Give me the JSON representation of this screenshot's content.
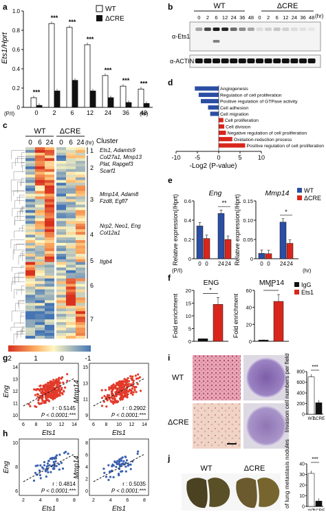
{
  "letters": {
    "a": "a",
    "b": "b",
    "c": "c",
    "d": "d",
    "e": "e",
    "f": "f",
    "g": "g",
    "h": "h",
    "i": "i",
    "j": "j"
  },
  "colors": {
    "wt_blue": "#2b4ea3",
    "cre_red": "#d9261c",
    "bar_white": "#ffffff",
    "bar_black": "#111111",
    "scatter_red": "#e23a2a",
    "scatter_blue": "#3a5fb0",
    "igg_black": "#111111",
    "ets1_red": "#d9261c"
  },
  "panel_a": {
    "ylabel": "Ets1/Hprt",
    "xlabel_prefix": "(P/I)",
    "xunit": "(hr)",
    "legend": [
      "WT",
      "ΔCRE"
    ],
    "sig": "***",
    "chart_data": {
      "type": "bar",
      "categories": [
        "0",
        "2",
        "6",
        "12",
        "24",
        "36",
        "48"
      ],
      "ylim": [
        0,
        1.0
      ],
      "yticks": [
        "0",
        "0.2",
        "0.4",
        "0.6",
        "0.8",
        "1.0"
      ],
      "series": [
        {
          "name": "WT",
          "values": [
            0.1,
            0.87,
            0.83,
            0.65,
            0.33,
            0.22,
            0.19
          ]
        },
        {
          "name": "ΔCRE",
          "values": [
            0.02,
            0.17,
            0.28,
            0.17,
            0.1,
            0.05,
            0.04
          ]
        }
      ]
    }
  },
  "panel_b": {
    "groups": [
      "WT",
      "ΔCRE"
    ],
    "lanes": [
      "0",
      "2",
      "6",
      "12",
      "24",
      "36",
      "48",
      "0",
      "2",
      "6",
      "12",
      "24",
      "36",
      "48"
    ],
    "unit": "(hr)",
    "rows": [
      "α-Ets1",
      "α-ACTIN"
    ]
  },
  "panel_c": {
    "groups": [
      "WT",
      "ΔCRE"
    ],
    "lanes": [
      "0",
      "6",
      "24",
      "0",
      "6",
      "24"
    ],
    "unit": "(hr)",
    "cluster_title": "Cluster",
    "clusters": [
      "1",
      "2",
      "3",
      "4",
      "5",
      "6",
      "7"
    ],
    "genes": [
      {
        "lines": [
          "Ets1, Adamts9",
          "Col27a1, Mmp13",
          "Plat, Rapgef3",
          "Scarf1"
        ]
      },
      {
        "lines": [
          "Mmp14, Adam8",
          "Fzd8, Egfl7"
        ]
      },
      {
        "lines": [
          "Nrp2, Neo1, Eng",
          "Col12a1"
        ]
      },
      {
        "lines": [
          "Itgb4"
        ]
      }
    ],
    "scale_labels": [
      "2",
      "1",
      "0",
      "-1"
    ]
  },
  "panel_d": {
    "xlabel": "-Log2 (P-value)",
    "chart_data": {
      "type": "bar",
      "xlim": [
        -10,
        10
      ],
      "xticks": [
        "-10",
        "-5",
        "0",
        "5",
        "10"
      ],
      "categories": [
        "Angiogenesis",
        "Regulation of cell proliferation",
        "Positive regulation of GTPase activity",
        "Cell adhesion",
        "Cell migration",
        "Cell proliferation",
        "Cell division",
        "Negative regulation of cell proliferation",
        "Oxidation-reduction process",
        "Positive regulation of cell proliferation"
      ],
      "values": [
        -5.6,
        -4.7,
        -4.2,
        -2.5,
        -2.0,
        1.1,
        1.3,
        1.7,
        3.2,
        6.2
      ]
    }
  },
  "panel_e": {
    "ylabel": "Relative expression(/Hprt)",
    "legend": [
      "WT",
      "ΔCRE"
    ],
    "xprefix": "(P/I)",
    "xunit": "(hr)",
    "sig": [
      "**",
      "*"
    ],
    "chart_data": [
      {
        "type": "bar",
        "title": "Eng",
        "categories": [
          "0",
          "24"
        ],
        "ylim": [
          0,
          0.6
        ],
        "yticks": [
          "0",
          "0.2",
          "0.4",
          "0.6"
        ],
        "series": [
          {
            "name": "WT",
            "values": [
              0.34,
              0.47
            ]
          },
          {
            "name": "ΔCRE",
            "values": [
              0.21,
              0.2
            ]
          }
        ]
      },
      {
        "type": "bar",
        "title": "Mmp14",
        "categories": [
          "0",
          "24"
        ],
        "ylim": [
          0,
          0.15
        ],
        "yticks": [
          "0",
          "0.05",
          "0.10",
          "0.15"
        ],
        "series": [
          {
            "name": "WT",
            "values": [
              0.014,
              0.095
            ]
          },
          {
            "name": "ΔCRE",
            "values": [
              0.013,
              0.04
            ]
          }
        ]
      }
    ]
  },
  "panel_f": {
    "ylabel": "Fold enrichment",
    "legend": [
      "IgG",
      "Ets1"
    ],
    "sig": [
      "*",
      "**"
    ],
    "chart_data": [
      {
        "type": "bar",
        "title": "ENG",
        "ylim": [
          0,
          20
        ],
        "yticks": [
          "0",
          "5",
          "10",
          "15",
          "20"
        ],
        "categories": [
          "IgG",
          "Ets1"
        ],
        "values": [
          1,
          14.5
        ]
      },
      {
        "type": "bar",
        "title": "MMP14",
        "ylim": [
          0,
          60
        ],
        "yticks": [
          "0",
          "20",
          "40",
          "60"
        ],
        "categories": [
          "IgG",
          "Ets1"
        ],
        "values": [
          1.5,
          47
        ]
      }
    ]
  },
  "panel_g": {
    "xlabel": "Ets1",
    "plots": [
      {
        "ylabel": "Eng",
        "r": "r : 0.5145",
        "p": "P < 0.0001:***",
        "xticks": [
          "6",
          "8",
          "10",
          "12",
          "14"
        ],
        "yticks": [
          "10",
          "11",
          "12",
          "13",
          "14"
        ]
      },
      {
        "ylabel": "Mmp14",
        "r": "r : 0.2902",
        "p": "P < 0.0001:***",
        "xticks": [
          "6",
          "8",
          "10",
          "12",
          "14"
        ],
        "yticks": [
          "9",
          "11",
          "13",
          "15"
        ]
      }
    ]
  },
  "panel_h": {
    "xlabel": "Ets1",
    "plots": [
      {
        "ylabel": "Eng",
        "r": "r : 0.4814",
        "p": "P < 0.0001:***",
        "xticks": [
          "2",
          "4",
          "6",
          "8"
        ],
        "yticks": [
          "6",
          "8",
          "10"
        ]
      },
      {
        "ylabel": "Mmp14",
        "r": "r : 0.5035",
        "p": "P < 0.0001:***",
        "xticks": [
          "2",
          "4",
          "6",
          "8"
        ],
        "yticks": [
          "0",
          "2",
          "4",
          "6",
          "8"
        ]
      }
    ]
  },
  "panel_i": {
    "rows": [
      "WT",
      "ΔCRE"
    ],
    "ylabel": "Invasion cell numbers per field",
    "sig": "***",
    "chart_data": {
      "type": "bar",
      "categories": [
        "WT",
        "ΔCRE"
      ],
      "values": [
        700,
        215
      ],
      "ylim": [
        0,
        800
      ],
      "yticks": [
        "0",
        "200",
        "400",
        "600",
        "800"
      ]
    }
  },
  "panel_j": {
    "cols": [
      "WT",
      "ΔCRE"
    ],
    "ylabel": "Number of lung metastasis nodules",
    "sig": "***",
    "chart_data": {
      "type": "bar",
      "categories": [
        "WT",
        "ΔCRE"
      ],
      "values": [
        31,
        5
      ],
      "ylim": [
        0,
        40
      ],
      "yticks": [
        "0",
        "10",
        "20",
        "30",
        "40"
      ]
    }
  }
}
